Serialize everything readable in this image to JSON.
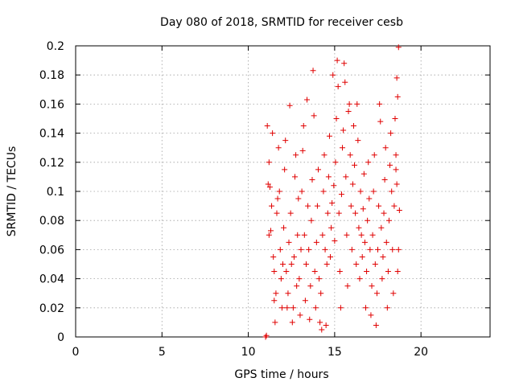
{
  "chart_data": {
    "type": "scatter",
    "title": "Day 080 of 2018, SRMTID for receiver cesb",
    "xlabel": "GPS time / hours",
    "ylabel": "SRMTID / TECUs",
    "xlim": [
      0,
      24
    ],
    "ylim": [
      0,
      0.2
    ],
    "xticks": [
      0,
      5,
      10,
      15,
      20
    ],
    "xtick_labels": [
      "0",
      "5",
      "10",
      "15",
      "20"
    ],
    "yticks": [
      0,
      0.02,
      0.04,
      0.06,
      0.08,
      0.1,
      0.12,
      0.14,
      0.16,
      0.18,
      0.2
    ],
    "ytick_labels": [
      "0",
      "0.02",
      "0.04",
      "0.06",
      "0.08",
      "0.1",
      "0.12",
      "0.14",
      "0.16",
      "0.18",
      "0.2"
    ],
    "grid": true,
    "marker": "+",
    "color": "#e00000",
    "series": [
      {
        "name": "SRMTID",
        "points": [
          [
            11.0,
            0.0
          ],
          [
            11.05,
            0.001
          ],
          [
            11.1,
            0.145
          ],
          [
            11.2,
            0.12
          ],
          [
            11.15,
            0.105
          ],
          [
            11.25,
            0.103
          ],
          [
            11.3,
            0.073
          ],
          [
            11.2,
            0.07
          ],
          [
            11.35,
            0.09
          ],
          [
            11.4,
            0.14
          ],
          [
            11.45,
            0.055
          ],
          [
            11.5,
            0.025
          ],
          [
            11.55,
            0.01
          ],
          [
            11.6,
            0.03
          ],
          [
            11.5,
            0.045
          ],
          [
            11.65,
            0.085
          ],
          [
            11.7,
            0.095
          ],
          [
            11.8,
            0.1
          ],
          [
            11.75,
            0.13
          ],
          [
            11.85,
            0.06
          ],
          [
            11.9,
            0.04
          ],
          [
            11.95,
            0.02
          ],
          [
            12.0,
            0.05
          ],
          [
            12.05,
            0.075
          ],
          [
            12.1,
            0.115
          ],
          [
            12.15,
            0.135
          ],
          [
            12.2,
            0.045
          ],
          [
            12.25,
            0.02
          ],
          [
            12.3,
            0.03
          ],
          [
            12.35,
            0.065
          ],
          [
            12.4,
            0.159
          ],
          [
            12.45,
            0.085
          ],
          [
            12.5,
            0.05
          ],
          [
            12.55,
            0.01
          ],
          [
            12.6,
            0.02
          ],
          [
            12.65,
            0.055
          ],
          [
            12.7,
            0.11
          ],
          [
            12.75,
            0.125
          ],
          [
            12.8,
            0.035
          ],
          [
            12.85,
            0.07
          ],
          [
            12.9,
            0.095
          ],
          [
            12.95,
            0.04
          ],
          [
            13.0,
            0.015
          ],
          [
            13.05,
            0.06
          ],
          [
            13.1,
            0.1
          ],
          [
            13.15,
            0.128
          ],
          [
            13.2,
            0.145
          ],
          [
            13.25,
            0.07
          ],
          [
            13.3,
            0.025
          ],
          [
            13.35,
            0.05
          ],
          [
            13.4,
            0.163
          ],
          [
            13.45,
            0.09
          ],
          [
            13.5,
            0.06
          ],
          [
            13.55,
            0.012
          ],
          [
            13.6,
            0.035
          ],
          [
            13.65,
            0.08
          ],
          [
            13.7,
            0.108
          ],
          [
            13.75,
            0.183
          ],
          [
            13.8,
            0.152
          ],
          [
            13.85,
            0.045
          ],
          [
            13.9,
            0.02
          ],
          [
            13.95,
            0.065
          ],
          [
            14.0,
            0.09
          ],
          [
            14.05,
            0.115
          ],
          [
            14.1,
            0.04
          ],
          [
            14.15,
            0.01
          ],
          [
            14.2,
            0.03
          ],
          [
            14.25,
            0.005
          ],
          [
            14.3,
            0.07
          ],
          [
            14.35,
            0.1
          ],
          [
            14.4,
            0.125
          ],
          [
            14.45,
            0.06
          ],
          [
            14.5,
            0.008
          ],
          [
            14.55,
            0.05
          ],
          [
            14.6,
            0.085
          ],
          [
            14.65,
            0.11
          ],
          [
            14.7,
            0.138
          ],
          [
            14.75,
            0.055
          ],
          [
            14.8,
            0.075
          ],
          [
            14.85,
            0.092
          ],
          [
            14.9,
            0.18
          ],
          [
            14.95,
            0.104
          ],
          [
            15.0,
            0.066
          ],
          [
            15.05,
            0.12
          ],
          [
            15.1,
            0.15
          ],
          [
            15.15,
            0.19
          ],
          [
            15.2,
            0.172
          ],
          [
            15.25,
            0.085
          ],
          [
            15.3,
            0.045
          ],
          [
            15.35,
            0.02
          ],
          [
            15.4,
            0.098
          ],
          [
            15.45,
            0.13
          ],
          [
            15.5,
            0.142
          ],
          [
            15.55,
            0.188
          ],
          [
            15.6,
            0.175
          ],
          [
            15.65,
            0.11
          ],
          [
            15.7,
            0.07
          ],
          [
            15.75,
            0.035
          ],
          [
            15.8,
            0.155
          ],
          [
            15.85,
            0.16
          ],
          [
            15.9,
            0.125
          ],
          [
            15.95,
            0.09
          ],
          [
            16.0,
            0.06
          ],
          [
            16.05,
            0.105
          ],
          [
            16.1,
            0.145
          ],
          [
            16.15,
            0.118
          ],
          [
            16.2,
            0.085
          ],
          [
            16.25,
            0.05
          ],
          [
            16.3,
            0.16
          ],
          [
            16.35,
            0.135
          ],
          [
            16.4,
            0.075
          ],
          [
            16.45,
            0.04
          ],
          [
            16.5,
            0.1
          ],
          [
            16.55,
            0.07
          ],
          [
            16.6,
            0.055
          ],
          [
            16.65,
            0.088
          ],
          [
            16.7,
            0.112
          ],
          [
            16.75,
            0.065
          ],
          [
            16.8,
            0.02
          ],
          [
            16.85,
            0.045
          ],
          [
            16.9,
            0.08
          ],
          [
            16.95,
            0.12
          ],
          [
            17.0,
            0.095
          ],
          [
            17.05,
            0.06
          ],
          [
            17.1,
            0.015
          ],
          [
            17.15,
            0.035
          ],
          [
            17.2,
            0.07
          ],
          [
            17.25,
            0.1
          ],
          [
            17.3,
            0.125
          ],
          [
            17.35,
            0.05
          ],
          [
            17.4,
            0.008
          ],
          [
            17.45,
            0.03
          ],
          [
            17.5,
            0.06
          ],
          [
            17.55,
            0.09
          ],
          [
            17.6,
            0.16
          ],
          [
            17.65,
            0.148
          ],
          [
            17.7,
            0.075
          ],
          [
            17.75,
            0.04
          ],
          [
            17.8,
            0.055
          ],
          [
            17.85,
            0.085
          ],
          [
            17.9,
            0.108
          ],
          [
            17.95,
            0.13
          ],
          [
            18.0,
            0.065
          ],
          [
            18.05,
            0.02
          ],
          [
            18.1,
            0.045
          ],
          [
            18.15,
            0.08
          ],
          [
            18.2,
            0.118
          ],
          [
            18.25,
            0.14
          ],
          [
            18.3,
            0.1
          ],
          [
            18.35,
            0.06
          ],
          [
            18.4,
            0.03
          ],
          [
            18.45,
            0.09
          ],
          [
            18.5,
            0.15
          ],
          [
            18.55,
            0.125
          ],
          [
            18.6,
            0.178
          ],
          [
            18.65,
            0.165
          ],
          [
            18.7,
            0.199
          ],
          [
            18.75,
            0.087
          ],
          [
            18.7,
            0.06
          ],
          [
            18.65,
            0.045
          ],
          [
            18.6,
            0.105
          ],
          [
            18.55,
            0.115
          ]
        ]
      }
    ]
  }
}
